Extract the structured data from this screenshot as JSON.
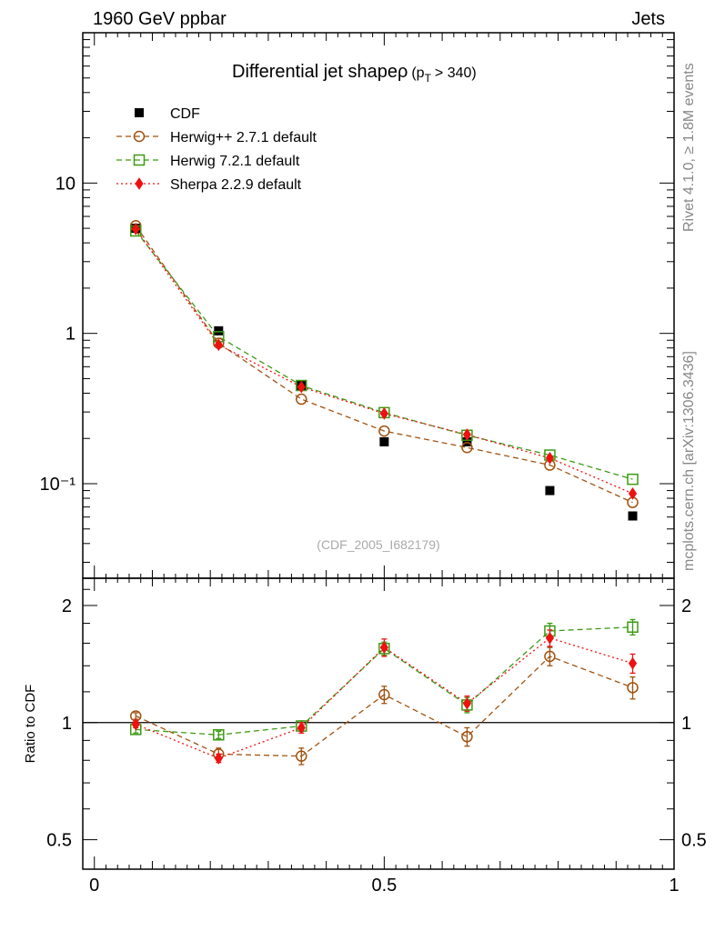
{
  "header": {
    "left": "1960 GeV ppbar",
    "right": "Jets"
  },
  "side": {
    "top": "Rivet 4.1.0, ≥ 1.8M events",
    "bottom": "mcplots.cern.ch [arXiv:1306.3436]"
  },
  "chart_data": [
    {
      "type": "line",
      "title": "Differential jet shapeρ",
      "title_cut": "(p",
      "title_sub": "T",
      "title_cut_rest": "> 340)",
      "watermark": "(CDF_2005_I682179)",
      "yscale": "log",
      "xlim": [
        -0.02,
        1.0
      ],
      "ylim": [
        0.0235,
        100
      ],
      "x": [
        0.0714,
        0.2143,
        0.3571,
        0.5,
        0.6429,
        0.7857,
        0.9286
      ],
      "ytick_labels": [
        "10⁻¹",
        "1",
        "10"
      ],
      "data": {
        "name": "CDF",
        "values": [
          5.0,
          1.04,
          0.45,
          0.19,
          0.19,
          0.09,
          0.061
        ]
      },
      "series": [
        {
          "name": "Herwig++ 2.7.1 default",
          "color": "#a0520f",
          "marker": "open-circle",
          "dash": "dashed",
          "values": [
            5.2,
            0.86,
            0.365,
            0.224,
            0.174,
            0.133,
            0.075
          ]
        },
        {
          "name": "Herwig 7.2.1 default",
          "color": "#3c9a12",
          "marker": "open-square",
          "dash": "dashed",
          "values": [
            4.8,
            0.95,
            0.45,
            0.297,
            0.21,
            0.155,
            0.107
          ]
        },
        {
          "name": "Sherpa 2.2.9 default",
          "color": "#ee1111",
          "marker": "diamond",
          "dash": "dotted",
          "values": [
            4.95,
            0.84,
            0.44,
            0.293,
            0.212,
            0.148,
            0.086
          ]
        }
      ]
    },
    {
      "type": "line",
      "ylabel": "Ratio to CDF",
      "yscale": "log",
      "xlim": [
        -0.02,
        1.0
      ],
      "ylim": [
        0.42,
        2.35
      ],
      "xticks": [
        0,
        0.5,
        1
      ],
      "xtick_labels": [
        "0",
        "0.5",
        "1"
      ],
      "yticks": [
        0.5,
        1,
        2
      ],
      "ytick_labels": [
        "0.5",
        "1",
        "2"
      ],
      "reference": 1,
      "x": [
        0.0714,
        0.2143,
        0.3571,
        0.5,
        0.6429,
        0.7857,
        0.9286
      ],
      "series": [
        {
          "name": "Herwig++ 2.7.1 default",
          "color": "#a0520f",
          "marker": "open-circle",
          "dash": "dashed",
          "values": [
            1.04,
            0.83,
            0.82,
            1.18,
            0.92,
            1.48,
            1.23
          ],
          "err": [
            0.02,
            0.03,
            0.04,
            0.06,
            0.05,
            0.08,
            0.08
          ]
        },
        {
          "name": "Herwig 7.2.1 default",
          "color": "#3c9a12",
          "marker": "open-square",
          "dash": "dashed",
          "values": [
            0.96,
            0.93,
            0.98,
            1.55,
            1.11,
            1.72,
            1.76
          ],
          "err": [
            0.02,
            0.02,
            0.03,
            0.06,
            0.05,
            0.08,
            0.08
          ]
        },
        {
          "name": "Sherpa 2.2.9 default",
          "color": "#ee1111",
          "marker": "diamond",
          "dash": "dotted",
          "values": [
            0.99,
            0.81,
            0.97,
            1.56,
            1.12,
            1.65,
            1.42
          ],
          "err": [
            0.02,
            0.02,
            0.03,
            0.08,
            0.05,
            0.08,
            0.08
          ]
        }
      ]
    }
  ]
}
